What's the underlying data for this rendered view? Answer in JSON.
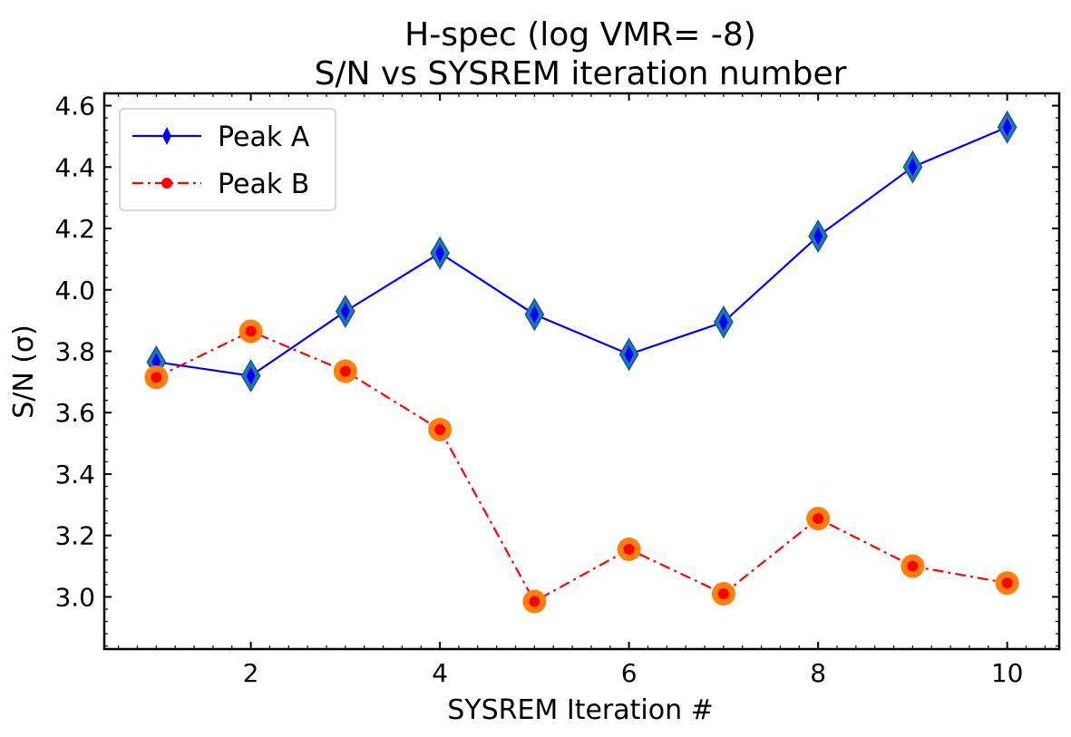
{
  "chart_data": {
    "type": "line",
    "title_line1": "H-spec (log VMR= -8)",
    "title_line2": "S/N vs SYSREM iteration number",
    "xlabel": "SYSREM Iteration #",
    "ylabel": "S/N (σ)",
    "xlim": [
      0.45,
      10.55
    ],
    "ylim": [
      2.83,
      4.64
    ],
    "x_ticks": [
      2,
      4,
      6,
      8,
      10
    ],
    "x_tick_labels": [
      "2",
      "4",
      "6",
      "8",
      "10"
    ],
    "y_ticks": [
      3.0,
      3.2,
      3.4,
      3.6,
      3.8,
      4.0,
      4.2,
      4.4,
      4.6
    ],
    "y_tick_labels": [
      "3.0",
      "3.2",
      "3.4",
      "3.6",
      "3.8",
      "4.0",
      "4.2",
      "4.4",
      "4.6"
    ],
    "x": [
      1,
      2,
      3,
      4,
      5,
      6,
      7,
      8,
      9,
      10
    ],
    "series": [
      {
        "name": "Peak A",
        "color": "#0000ff",
        "marker": "diamond",
        "marker_halo_color": "#1f77b4",
        "linestyle": "solid",
        "values": [
          3.765,
          3.72,
          3.93,
          4.12,
          3.92,
          3.79,
          3.895,
          4.175,
          4.4,
          4.53
        ]
      },
      {
        "name": "Peak B",
        "color": "#ff0000",
        "marker": "circle",
        "marker_halo_color": "#ff7f0e",
        "linestyle": "dashdot",
        "values": [
          3.715,
          3.865,
          3.735,
          3.545,
          2.985,
          3.155,
          3.01,
          3.255,
          3.1,
          3.045
        ]
      }
    ],
    "legend": {
      "position": "top-left",
      "entries": [
        "Peak A",
        "Peak B"
      ]
    },
    "grid": false
  }
}
